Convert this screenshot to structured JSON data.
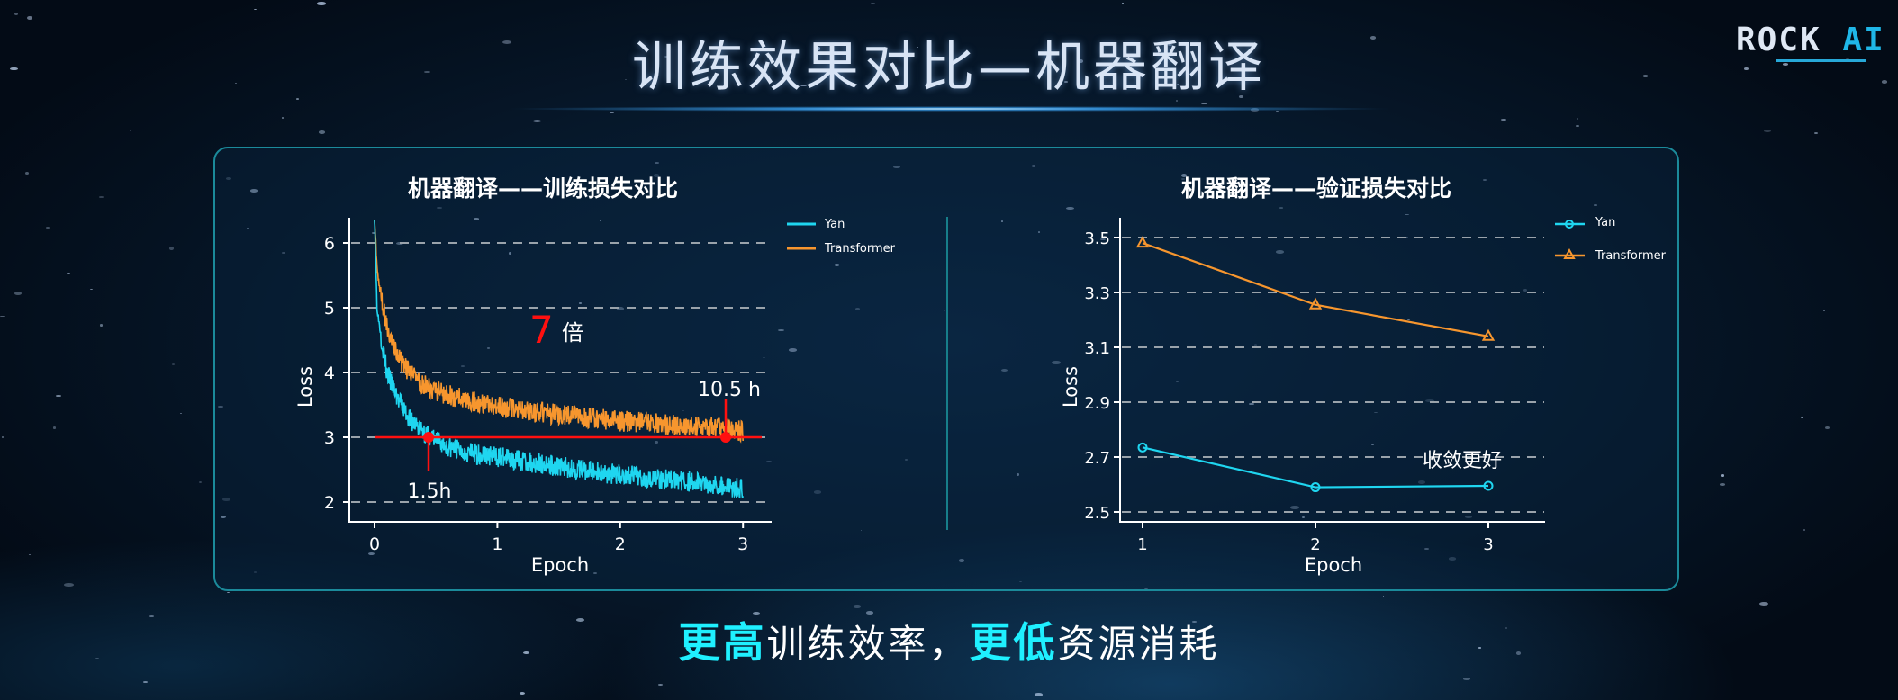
{
  "header": {
    "title": "训练效果对比—机器翻译",
    "logo_text_main": "ROCK",
    "logo_text_accent": "AI"
  },
  "colors": {
    "yan": "#1fd6f0",
    "transformer": "#f7962e",
    "annotation": "#ff1010",
    "panel_border": "#1b8a9a",
    "highlight": "#1ff0ff"
  },
  "footer": {
    "hl1": "更高",
    "text1": "训练效率，",
    "hl2": "更低",
    "text2": "资源消耗"
  },
  "chart_data": [
    {
      "type": "line",
      "title": "机器翻译——训练损失对比",
      "xlabel": "Epoch",
      "ylabel": "Loss",
      "xlim": [
        -0.2,
        3.2
      ],
      "ylim": [
        1.75,
        6.4
      ],
      "xticks": [
        "0",
        "1",
        "2",
        "3"
      ],
      "yticks": [
        "2",
        "3",
        "4",
        "5",
        "6"
      ],
      "grid": "horizontal dashed",
      "legend": {
        "position": "upper right",
        "entries": [
          "Yan",
          "Transformer"
        ]
      },
      "series": [
        {
          "name": "Yan",
          "x": [
            0,
            0.02,
            0.05,
            0.1,
            0.2,
            0.3,
            0.45,
            0.6,
            0.8,
            1.0,
            1.25,
            1.5,
            1.75,
            2.0,
            2.25,
            2.5,
            2.75,
            3.0
          ],
          "values": [
            6.4,
            5.0,
            4.6,
            4.0,
            3.55,
            3.25,
            3.0,
            2.85,
            2.75,
            2.7,
            2.62,
            2.55,
            2.48,
            2.42,
            2.38,
            2.33,
            2.28,
            2.2
          ]
        },
        {
          "name": "Transformer",
          "x": [
            0,
            0.02,
            0.05,
            0.1,
            0.2,
            0.3,
            0.45,
            0.6,
            0.8,
            1.0,
            1.25,
            1.5,
            1.75,
            2.0,
            2.25,
            2.5,
            2.75,
            3.0
          ],
          "values": [
            6.4,
            5.6,
            5.2,
            4.7,
            4.2,
            3.95,
            3.75,
            3.65,
            3.55,
            3.48,
            3.4,
            3.35,
            3.3,
            3.25,
            3.22,
            3.18,
            3.15,
            3.1
          ]
        }
      ],
      "annotations": [
        {
          "text": "7",
          "color": "red",
          "suffix": "倍"
        },
        {
          "text": "1.5h",
          "x": 0.43,
          "y": 3.0
        },
        {
          "text": "10.5 h",
          "x": 2.85,
          "y": 3.0
        },
        {
          "type": "hline",
          "y": 3.0,
          "color": "red"
        }
      ]
    },
    {
      "type": "line",
      "title": "机器翻译——验证损失对比",
      "xlabel": "Epoch",
      "ylabel": "Loss",
      "xlim": [
        0.83,
        3.15
      ],
      "ylim": [
        2.47,
        3.58
      ],
      "xticks": [
        "1",
        "2",
        "3"
      ],
      "yticks": [
        "2.5",
        "2.7",
        "2.9",
        "3.1",
        "3.3",
        "3.5"
      ],
      "grid": "horizontal dashed",
      "legend": {
        "position": "upper right",
        "entries": [
          "Yan",
          "Transformer"
        ]
      },
      "categories": [
        1,
        2,
        3
      ],
      "series": [
        {
          "name": "Yan",
          "marker": "circle",
          "values": [
            2.735,
            2.59,
            2.595
          ]
        },
        {
          "name": "Transformer",
          "marker": "triangle",
          "values": [
            3.48,
            3.255,
            3.14
          ]
        }
      ],
      "annotations": [
        {
          "text": "收敛更好",
          "x": 2.5,
          "y": 2.69
        }
      ]
    }
  ]
}
